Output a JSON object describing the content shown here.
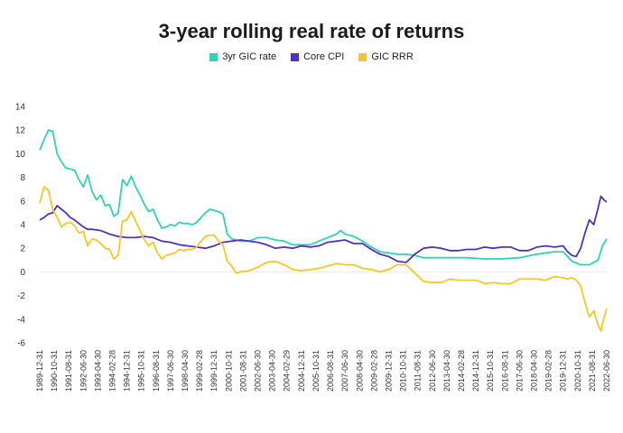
{
  "chart_data": {
    "type": "line",
    "title": "3-year rolling real rate of returns",
    "xlabel": "",
    "ylabel": "",
    "ylim": [
      -6,
      14
    ],
    "yticks": [
      -6,
      -4,
      -2,
      0,
      2,
      4,
      6,
      8,
      10,
      12,
      14
    ],
    "xlim": [
      "1989-12-31",
      "2022-06-30"
    ],
    "xtick_labels": [
      "1989-12-31",
      "1990-10-31",
      "1991-08-31",
      "1992-06-30",
      "1993-04-30",
      "1994-02-28",
      "1994-12-31",
      "1995-10-31",
      "1996-08-31",
      "1997-06-30",
      "1998-04-30",
      "1999-02-28",
      "1999-12-31",
      "2000-10-31",
      "2001-08-31",
      "2002-06-30",
      "2003-04-30",
      "2004-02-29",
      "2004-12-31",
      "2005-10-31",
      "2006-08-31",
      "2007-06-30",
      "2008-04-30",
      "2009-02-28",
      "2009-12-31",
      "2010-10-31",
      "2011-08-31",
      "2012-06-30",
      "2013-04-30",
      "2014-02-28",
      "2014-12-31",
      "2015-10-31",
      "2016-08-31",
      "2017-06-30",
      "2018-04-30",
      "2019-02-28",
      "2019-12-31",
      "2020-10-31",
      "2021-08-31",
      "2022-06-30"
    ],
    "grid": false,
    "legend_position": "top-center",
    "series": [
      {
        "name": "3yr GIC rate",
        "color": "#2dd4b4",
        "points": [
          [
            "1989-12-31",
            10.3
          ],
          [
            "1990-03-31",
            11.2
          ],
          [
            "1990-06-30",
            12.0
          ],
          [
            "1990-09-30",
            11.9
          ],
          [
            "1990-12-31",
            10.0
          ],
          [
            "1991-03-31",
            9.3
          ],
          [
            "1991-06-30",
            8.8
          ],
          [
            "1991-09-30",
            8.7
          ],
          [
            "1991-12-31",
            8.6
          ],
          [
            "1992-03-31",
            7.8
          ],
          [
            "1992-06-30",
            7.2
          ],
          [
            "1992-09-30",
            8.2
          ],
          [
            "1992-12-31",
            6.8
          ],
          [
            "1993-03-31",
            6.1
          ],
          [
            "1993-06-30",
            6.5
          ],
          [
            "1993-09-30",
            5.6
          ],
          [
            "1993-12-31",
            5.7
          ],
          [
            "1994-03-31",
            4.7
          ],
          [
            "1994-06-30",
            5.0
          ],
          [
            "1994-09-30",
            7.8
          ],
          [
            "1994-12-31",
            7.3
          ],
          [
            "1995-03-31",
            8.1
          ],
          [
            "1995-06-30",
            7.2
          ],
          [
            "1995-09-30",
            6.5
          ],
          [
            "1995-12-31",
            5.7
          ],
          [
            "1996-03-31",
            5.1
          ],
          [
            "1996-06-30",
            5.3
          ],
          [
            "1996-09-30",
            4.4
          ],
          [
            "1996-12-31",
            3.7
          ],
          [
            "1997-03-31",
            3.8
          ],
          [
            "1997-06-30",
            4.0
          ],
          [
            "1997-09-30",
            3.9
          ],
          [
            "1997-12-31",
            4.2
          ],
          [
            "1998-03-31",
            4.1
          ],
          [
            "1998-06-30",
            4.1
          ],
          [
            "1998-09-30",
            4.0
          ],
          [
            "1998-12-31",
            4.2
          ],
          [
            "1999-03-31",
            4.6
          ],
          [
            "1999-06-30",
            5.0
          ],
          [
            "1999-09-30",
            5.3
          ],
          [
            "1999-12-31",
            5.2
          ],
          [
            "2000-03-31",
            5.1
          ],
          [
            "2000-06-30",
            4.9
          ],
          [
            "2000-09-30",
            3.2
          ],
          [
            "2000-12-31",
            2.8
          ],
          [
            "2001-06-30",
            2.6
          ],
          [
            "2001-12-31",
            2.6
          ],
          [
            "2002-06-30",
            2.9
          ],
          [
            "2002-12-31",
            2.9
          ],
          [
            "2003-06-30",
            2.7
          ],
          [
            "2003-12-31",
            2.6
          ],
          [
            "2004-06-30",
            2.3
          ],
          [
            "2004-12-31",
            2.3
          ],
          [
            "2005-06-30",
            2.3
          ],
          [
            "2005-12-31",
            2.6
          ],
          [
            "2006-06-30",
            2.9
          ],
          [
            "2006-12-31",
            3.2
          ],
          [
            "2007-03-31",
            3.5
          ],
          [
            "2007-06-30",
            3.2
          ],
          [
            "2007-12-31",
            3.0
          ],
          [
            "2008-06-30",
            2.6
          ],
          [
            "2008-12-31",
            2.1
          ],
          [
            "2009-06-30",
            1.7
          ],
          [
            "2009-12-31",
            1.6
          ],
          [
            "2010-06-30",
            1.5
          ],
          [
            "2010-12-31",
            1.5
          ],
          [
            "2011-06-30",
            1.4
          ],
          [
            "2011-12-31",
            1.2
          ],
          [
            "2012-06-30",
            1.2
          ],
          [
            "2013-06-30",
            1.2
          ],
          [
            "2014-06-30",
            1.2
          ],
          [
            "2015-06-30",
            1.1
          ],
          [
            "2016-06-30",
            1.1
          ],
          [
            "2017-06-30",
            1.2
          ],
          [
            "2018-06-30",
            1.5
          ],
          [
            "2019-06-30",
            1.7
          ],
          [
            "2019-12-31",
            1.7
          ],
          [
            "2020-06-30",
            0.9
          ],
          [
            "2020-12-31",
            0.6
          ],
          [
            "2021-06-30",
            0.6
          ],
          [
            "2021-12-31",
            1.0
          ],
          [
            "2022-03-31",
            2.2
          ],
          [
            "2022-06-30",
            2.8
          ]
        ]
      },
      {
        "name": "Core CPI",
        "color": "#4f33bf",
        "points": [
          [
            "1989-12-31",
            4.4
          ],
          [
            "1990-03-31",
            4.6
          ],
          [
            "1990-06-30",
            4.9
          ],
          [
            "1990-09-30",
            5.0
          ],
          [
            "1990-12-31",
            5.6
          ],
          [
            "1991-03-31",
            5.3
          ],
          [
            "1991-06-30",
            5.0
          ],
          [
            "1991-09-30",
            4.6
          ],
          [
            "1991-12-31",
            4.4
          ],
          [
            "1992-03-31",
            4.1
          ],
          [
            "1992-06-30",
            3.8
          ],
          [
            "1992-09-30",
            3.6
          ],
          [
            "1992-12-31",
            3.6
          ],
          [
            "1993-06-30",
            3.5
          ],
          [
            "1993-12-31",
            3.2
          ],
          [
            "1994-06-30",
            3.0
          ],
          [
            "1994-12-31",
            2.9
          ],
          [
            "1995-06-30",
            2.9
          ],
          [
            "1995-12-31",
            3.0
          ],
          [
            "1996-06-30",
            2.9
          ],
          [
            "1996-12-31",
            2.6
          ],
          [
            "1997-06-30",
            2.5
          ],
          [
            "1997-12-31",
            2.3
          ],
          [
            "1998-06-30",
            2.2
          ],
          [
            "1998-12-31",
            2.1
          ],
          [
            "1999-06-30",
            2.0
          ],
          [
            "1999-12-31",
            2.2
          ],
          [
            "2000-06-30",
            2.5
          ],
          [
            "2000-12-31",
            2.6
          ],
          [
            "2001-06-30",
            2.7
          ],
          [
            "2001-12-31",
            2.6
          ],
          [
            "2002-06-30",
            2.5
          ],
          [
            "2002-12-31",
            2.3
          ],
          [
            "2003-06-30",
            2.0
          ],
          [
            "2003-12-31",
            2.1
          ],
          [
            "2004-06-30",
            2.0
          ],
          [
            "2004-12-31",
            2.2
          ],
          [
            "2005-06-30",
            2.1
          ],
          [
            "2005-12-31",
            2.2
          ],
          [
            "2006-06-30",
            2.5
          ],
          [
            "2006-12-31",
            2.6
          ],
          [
            "2007-06-30",
            2.7
          ],
          [
            "2007-12-31",
            2.4
          ],
          [
            "2008-06-30",
            2.4
          ],
          [
            "2008-12-31",
            1.9
          ],
          [
            "2009-06-30",
            1.5
          ],
          [
            "2009-12-31",
            1.3
          ],
          [
            "2010-06-30",
            0.9
          ],
          [
            "2010-12-31",
            0.8
          ],
          [
            "2011-06-30",
            1.5
          ],
          [
            "2011-12-31",
            2.0
          ],
          [
            "2012-06-30",
            2.1
          ],
          [
            "2012-12-31",
            2.0
          ],
          [
            "2013-06-30",
            1.8
          ],
          [
            "2013-12-31",
            1.8
          ],
          [
            "2014-06-30",
            1.9
          ],
          [
            "2014-12-31",
            1.9
          ],
          [
            "2015-06-30",
            2.1
          ],
          [
            "2015-12-31",
            2.0
          ],
          [
            "2016-06-30",
            2.1
          ],
          [
            "2016-12-31",
            2.1
          ],
          [
            "2017-06-30",
            1.8
          ],
          [
            "2017-12-31",
            1.8
          ],
          [
            "2018-06-30",
            2.1
          ],
          [
            "2018-12-31",
            2.2
          ],
          [
            "2019-06-30",
            2.1
          ],
          [
            "2019-12-31",
            2.2
          ],
          [
            "2020-03-31",
            1.7
          ],
          [
            "2020-06-30",
            1.4
          ],
          [
            "2020-09-30",
            1.3
          ],
          [
            "2020-12-31",
            2.0
          ],
          [
            "2021-03-31",
            3.3
          ],
          [
            "2021-06-30",
            4.4
          ],
          [
            "2021-09-30",
            4.0
          ],
          [
            "2021-12-31",
            5.4
          ],
          [
            "2022-02-28",
            6.4
          ],
          [
            "2022-04-30",
            6.1
          ],
          [
            "2022-06-30",
            5.9
          ]
        ]
      },
      {
        "name": "GIC RRR",
        "color": "#f7c825",
        "points": [
          [
            "1989-12-31",
            5.8
          ],
          [
            "1990-03-31",
            7.2
          ],
          [
            "1990-06-30",
            6.9
          ],
          [
            "1990-09-30",
            5.3
          ],
          [
            "1990-12-31",
            4.6
          ],
          [
            "1991-03-31",
            3.8
          ],
          [
            "1991-06-30",
            4.1
          ],
          [
            "1991-09-30",
            4.2
          ],
          [
            "1991-12-31",
            3.9
          ],
          [
            "1992-03-31",
            3.3
          ],
          [
            "1992-06-30",
            3.4
          ],
          [
            "1992-09-30",
            2.2
          ],
          [
            "1992-12-31",
            2.8
          ],
          [
            "1993-03-31",
            2.7
          ],
          [
            "1993-06-30",
            2.4
          ],
          [
            "1993-09-30",
            2.0
          ],
          [
            "1993-12-31",
            1.9
          ],
          [
            "1994-03-31",
            1.1
          ],
          [
            "1994-06-30",
            1.4
          ],
          [
            "1994-09-30",
            4.3
          ],
          [
            "1994-12-31",
            4.4
          ],
          [
            "1995-03-31",
            5.1
          ],
          [
            "1995-06-30",
            4.3
          ],
          [
            "1995-09-30",
            3.5
          ],
          [
            "1995-12-31",
            2.7
          ],
          [
            "1996-03-31",
            2.2
          ],
          [
            "1996-06-30",
            2.5
          ],
          [
            "1996-09-30",
            1.6
          ],
          [
            "1996-12-31",
            1.1
          ],
          [
            "1997-03-31",
            1.4
          ],
          [
            "1997-06-30",
            1.5
          ],
          [
            "1997-09-30",
            1.6
          ],
          [
            "1997-12-31",
            1.9
          ],
          [
            "1998-03-31",
            1.8
          ],
          [
            "1998-06-30",
            1.9
          ],
          [
            "1998-09-30",
            1.9
          ],
          [
            "1998-12-31",
            2.1
          ],
          [
            "1999-03-31",
            2.6
          ],
          [
            "1999-06-30",
            3.0
          ],
          [
            "1999-09-30",
            3.1
          ],
          [
            "1999-12-31",
            3.1
          ],
          [
            "2000-03-31",
            2.6
          ],
          [
            "2000-06-30",
            2.3
          ],
          [
            "2000-09-30",
            0.9
          ],
          [
            "2000-12-31",
            0.5
          ],
          [
            "2001-03-31",
            -0.1
          ],
          [
            "2001-06-30",
            0.0
          ],
          [
            "2001-12-31",
            0.1
          ],
          [
            "2002-06-30",
            0.4
          ],
          [
            "2002-12-31",
            0.8
          ],
          [
            "2003-06-30",
            0.9
          ],
          [
            "2003-12-31",
            0.6
          ],
          [
            "2004-06-30",
            0.2
          ],
          [
            "2004-12-31",
            0.1
          ],
          [
            "2005-06-30",
            0.2
          ],
          [
            "2005-12-31",
            0.3
          ],
          [
            "2006-06-30",
            0.5
          ],
          [
            "2006-12-31",
            0.7
          ],
          [
            "2007-06-30",
            0.6
          ],
          [
            "2007-12-31",
            0.6
          ],
          [
            "2008-06-30",
            0.3
          ],
          [
            "2008-12-31",
            0.2
          ],
          [
            "2009-06-30",
            0.0
          ],
          [
            "2009-12-31",
            0.2
          ],
          [
            "2010-06-30",
            0.6
          ],
          [
            "2010-12-31",
            0.6
          ],
          [
            "2011-06-30",
            -0.1
          ],
          [
            "2011-12-31",
            -0.8
          ],
          [
            "2012-06-30",
            -0.9
          ],
          [
            "2012-12-31",
            -0.9
          ],
          [
            "2013-06-30",
            -0.6
          ],
          [
            "2013-12-31",
            -0.7
          ],
          [
            "2014-06-30",
            -0.7
          ],
          [
            "2014-12-31",
            -0.7
          ],
          [
            "2015-06-30",
            -1.0
          ],
          [
            "2015-12-31",
            -0.9
          ],
          [
            "2016-06-30",
            -1.0
          ],
          [
            "2016-12-31",
            -1.0
          ],
          [
            "2017-06-30",
            -0.6
          ],
          [
            "2017-12-31",
            -0.6
          ],
          [
            "2018-06-30",
            -0.6
          ],
          [
            "2018-12-31",
            -0.7
          ],
          [
            "2019-06-30",
            -0.4
          ],
          [
            "2019-12-31",
            -0.5
          ],
          [
            "2020-03-31",
            -0.6
          ],
          [
            "2020-06-30",
            -0.5
          ],
          [
            "2020-09-30",
            -0.7
          ],
          [
            "2020-12-31",
            -1.2
          ],
          [
            "2021-03-31",
            -2.6
          ],
          [
            "2021-06-30",
            -3.8
          ],
          [
            "2021-09-30",
            -3.3
          ],
          [
            "2021-12-31",
            -4.5
          ],
          [
            "2022-02-28",
            -5.0
          ],
          [
            "2022-04-30",
            -3.9
          ],
          [
            "2022-06-30",
            -3.1
          ]
        ]
      }
    ]
  }
}
